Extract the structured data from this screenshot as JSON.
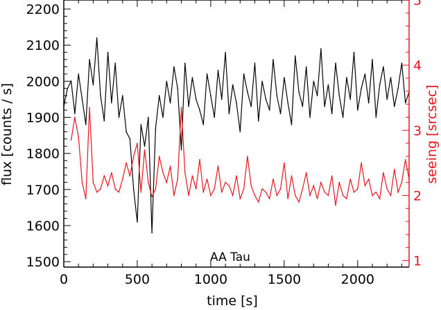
{
  "chart_data": {
    "type": "line",
    "title": "",
    "annotation": "AA Tau",
    "xlabel": "time [s]",
    "ylabel": "flux [counts / s]",
    "y2label": "seeing [srcsec]",
    "xlim": [
      0,
      2350
    ],
    "ylim": [
      1485,
      2225
    ],
    "y2lim": [
      0.9,
      5.0
    ],
    "xticks": [
      "0",
      "500",
      "1000",
      "1500",
      "2000"
    ],
    "yticks": [
      "1500",
      "1600",
      "1700",
      "1800",
      "1900",
      "2000",
      "2100",
      "2200"
    ],
    "y2ticks": [
      "1",
      "2",
      "3",
      "4",
      "5"
    ],
    "colors": {
      "flux": "#000000",
      "seeing": "#e8141e"
    },
    "series": [
      {
        "axis": "left",
        "x": [
          0,
          25,
          50,
          75,
          100,
          125,
          150,
          175,
          200,
          225,
          250,
          275,
          300,
          325,
          350,
          375,
          400,
          425,
          450,
          475,
          500,
          525,
          550,
          575,
          600,
          625,
          650,
          675,
          700,
          725,
          750,
          775,
          800,
          825,
          850,
          875,
          900,
          925,
          950,
          975,
          1000,
          1025,
          1050,
          1075,
          1100,
          1125,
          1150,
          1175,
          1200,
          1225,
          1250,
          1275,
          1300,
          1325,
          1350,
          1375,
          1400,
          1425,
          1450,
          1475,
          1500,
          1525,
          1550,
          1575,
          1600,
          1625,
          1650,
          1675,
          1700,
          1725,
          1750,
          1775,
          1800,
          1825,
          1850,
          1875,
          1900,
          1925,
          1950,
          1975,
          2000,
          2025,
          2050,
          2075,
          2100,
          2125,
          2150,
          2175,
          2200,
          2225,
          2250,
          2275,
          2300,
          2325,
          2350
        ],
        "values": [
          1930,
          1980,
          2000,
          1910,
          2020,
          1950,
          1880,
          2060,
          1990,
          2120,
          1960,
          1890,
          2080,
          1940,
          2050,
          1900,
          1960,
          1860,
          1840,
          1700,
          1610,
          1880,
          1820,
          1900,
          1580,
          1870,
          1960,
          1900,
          2000,
          1940,
          2040,
          1980,
          1810,
          2050,
          1930,
          2010,
          1950,
          1920,
          1880,
          2020,
          1960,
          1900,
          2030,
          1950,
          2080,
          1910,
          1990,
          1940,
          1860,
          2020,
          1970,
          1930,
          2050,
          1890,
          2000,
          1950,
          1920,
          2060,
          1960,
          1910,
          2010,
          1940,
          1880,
          2070,
          1970,
          1930,
          2040,
          1900,
          2000,
          1960,
          2090,
          1930,
          1990,
          1910,
          2050,
          1960,
          1900,
          2010,
          1950,
          2080,
          1920,
          1980,
          2020,
          1940,
          2060,
          1900,
          1990,
          2040,
          1950,
          2010,
          1930,
          1980,
          2050,
          1940,
          1970
        ]
      },
      {
        "axis": "right",
        "x": [
          50,
          75,
          100,
          125,
          150,
          175,
          200,
          225,
          250,
          275,
          300,
          325,
          350,
          375,
          400,
          425,
          450,
          475,
          500,
          525,
          550,
          575,
          600,
          625,
          650,
          675,
          700,
          725,
          750,
          775,
          800,
          825,
          850,
          875,
          900,
          925,
          950,
          975,
          1000,
          1025,
          1050,
          1075,
          1100,
          1125,
          1150,
          1175,
          1200,
          1225,
          1250,
          1275,
          1300,
          1325,
          1350,
          1375,
          1400,
          1425,
          1450,
          1475,
          1500,
          1525,
          1550,
          1575,
          1600,
          1625,
          1650,
          1675,
          1700,
          1725,
          1750,
          1775,
          1800,
          1825,
          1850,
          1875,
          1900,
          1925,
          1950,
          1975,
          2000,
          2025,
          2050,
          2075,
          2100,
          2125,
          2150,
          2175,
          2200,
          2225,
          2250,
          2275,
          2300,
          2325,
          2350
        ],
        "values": [
          2.85,
          3.2,
          2.9,
          2.2,
          1.95,
          3.35,
          2.2,
          2.05,
          2.1,
          2.3,
          2.15,
          2.35,
          2.1,
          2.05,
          2.25,
          2.5,
          2.3,
          2.6,
          2.8,
          2.05,
          2.7,
          2.2,
          1.98,
          2.1,
          2.6,
          2.35,
          2.2,
          2.45,
          2.0,
          2.25,
          3.35,
          2.35,
          2.0,
          2.3,
          2.1,
          2.55,
          2.05,
          2.25,
          2.0,
          2.1,
          2.45,
          2.05,
          2.2,
          2.15,
          2.0,
          2.3,
          1.95,
          2.1,
          2.6,
          2.15,
          2.0,
          1.9,
          2.1,
          2.05,
          1.95,
          2.25,
          2.0,
          2.1,
          2.5,
          1.95,
          2.3,
          2.0,
          1.9,
          2.1,
          2.35,
          2.0,
          2.15,
          1.95,
          2.2,
          2.05,
          2.0,
          2.3,
          1.85,
          2.2,
          2.0,
          1.95,
          2.25,
          2.05,
          2.1,
          2.5,
          2.15,
          2.25,
          2.0,
          2.05,
          1.95,
          2.35,
          2.1,
          2.0,
          2.4,
          2.05,
          2.2,
          2.55,
          2.25
        ]
      }
    ]
  }
}
